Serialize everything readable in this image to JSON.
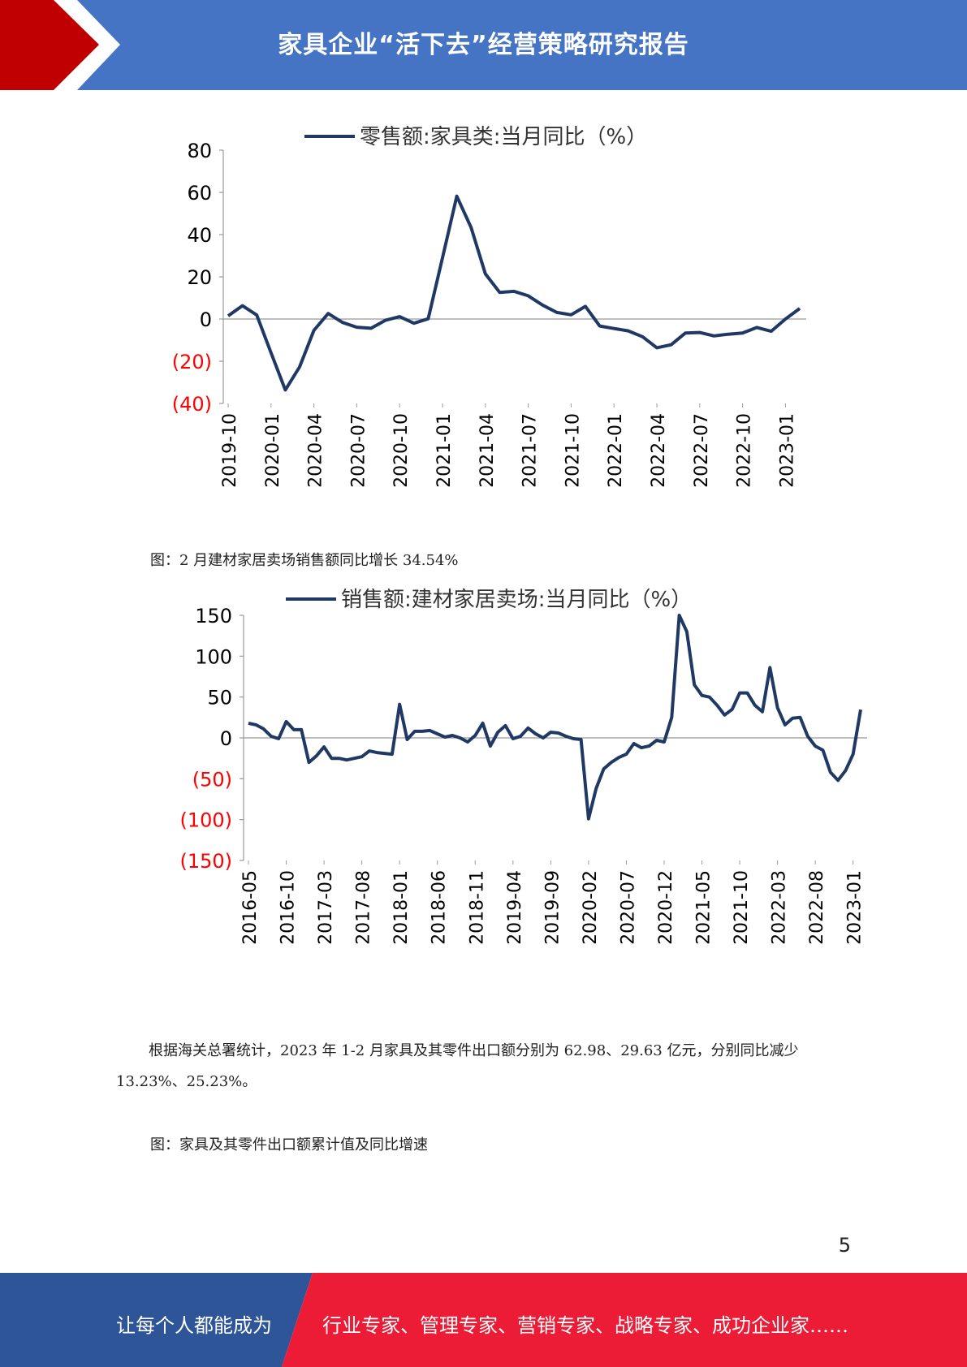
{
  "header": {
    "title": "家具企业“活下去”经营策略研究报告"
  },
  "charts": [
    {
      "legend": "零售额:家具类:当月同比（%）",
      "y_ticks": [
        "80",
        "60",
        "40",
        "20",
        "0",
        "(20)",
        "(40)"
      ],
      "x_ticks": [
        "2019-10",
        "2020-01",
        "2020-04",
        "2020-07",
        "2020-10",
        "2021-01",
        "2021-04",
        "2021-07",
        "2021-10",
        "2022-01",
        "2022-04",
        "2022-07",
        "2022-10",
        "2023-01"
      ]
    },
    {
      "legend": "销售额:建材家居卖场:当月同比（%）",
      "y_ticks": [
        "150",
        "100",
        "50",
        "0",
        "(50)",
        "(100)",
        "(150)"
      ],
      "x_ticks": [
        "2016-05",
        "2016-10",
        "2017-03",
        "2017-08",
        "2018-01",
        "2018-06",
        "2018-11",
        "2019-04",
        "2019-09",
        "2020-02",
        "2020-07",
        "2020-12",
        "2021-05",
        "2021-10",
        "2022-03",
        "2022-08",
        "2023-01"
      ]
    }
  ],
  "chart_data": [
    {
      "type": "line",
      "series_name": "零售额:家具类:当月同比（%）",
      "ylim": [
        -40,
        80
      ],
      "x": [
        "2019-10",
        "2019-11",
        "2019-12",
        "2020-01",
        "2020-02",
        "2020-03",
        "2020-04",
        "2020-05",
        "2020-06",
        "2020-07",
        "2020-08",
        "2020-09",
        "2020-10",
        "2020-11",
        "2020-12",
        "2021-01",
        "2021-02",
        "2021-03",
        "2021-04",
        "2021-05",
        "2021-06",
        "2021-07",
        "2021-08",
        "2021-09",
        "2021-10",
        "2021-11",
        "2021-12",
        "2022-01",
        "2022-02",
        "2022-03",
        "2022-04",
        "2022-05",
        "2022-06",
        "2022-07",
        "2022-08",
        "2022-09",
        "2022-10",
        "2022-11",
        "2022-12",
        "2023-01",
        "2023-02"
      ],
      "values": [
        1.5,
        6.3,
        1.9,
        -16,
        -33.6,
        -22.7,
        -5.4,
        2.6,
        -1.6,
        -3.9,
        -4.4,
        -0.6,
        1.1,
        -2,
        0.1,
        29,
        58.2,
        43.4,
        21.4,
        12.6,
        13.1,
        11,
        6.6,
        3.1,
        2,
        6,
        -3.3,
        -4.5,
        -5.6,
        -8.4,
        -13.6,
        -12.2,
        -6.6,
        -6.4,
        -8,
        -7.2,
        -6.6,
        -4,
        -5.8,
        0,
        5
      ]
    },
    {
      "type": "line",
      "series_name": "销售额:建材家居卖场:当月同比（%）",
      "ylim": [
        -150,
        150
      ],
      "x": [
        "2016-05",
        "2016-06",
        "2016-07",
        "2016-08",
        "2016-09",
        "2016-10",
        "2016-11",
        "2016-12",
        "2017-01",
        "2017-02",
        "2017-03",
        "2017-04",
        "2017-05",
        "2017-06",
        "2017-07",
        "2017-08",
        "2017-09",
        "2017-10",
        "2017-11",
        "2017-12",
        "2018-01",
        "2018-02",
        "2018-03",
        "2018-04",
        "2018-05",
        "2018-06",
        "2018-07",
        "2018-08",
        "2018-09",
        "2018-10",
        "2018-11",
        "2018-12",
        "2019-01",
        "2019-02",
        "2019-03",
        "2019-04",
        "2019-05",
        "2019-06",
        "2019-07",
        "2019-08",
        "2019-09",
        "2019-10",
        "2019-11",
        "2019-12",
        "2020-01",
        "2020-02",
        "2020-03",
        "2020-04",
        "2020-05",
        "2020-06",
        "2020-07",
        "2020-08",
        "2020-09",
        "2020-10",
        "2020-11",
        "2020-12",
        "2021-01",
        "2021-02",
        "2021-03",
        "2021-04",
        "2021-05",
        "2021-06",
        "2021-07",
        "2021-08",
        "2021-09",
        "2021-10",
        "2021-11",
        "2021-12",
        "2022-01",
        "2022-02",
        "2022-03",
        "2022-04",
        "2022-05",
        "2022-06",
        "2022-07",
        "2022-08",
        "2022-09",
        "2022-10",
        "2022-11",
        "2022-12",
        "2023-01",
        "2023-02"
      ],
      "values": [
        18,
        16,
        11,
        2,
        -1,
        20,
        10,
        10,
        -30,
        -22,
        -11,
        -25,
        -25,
        -27,
        -25,
        -23,
        -16,
        -18,
        -19,
        -20,
        41,
        -2,
        8,
        8,
        9,
        5,
        1,
        3,
        0,
        -5,
        3,
        18,
        -10,
        7,
        15,
        -1,
        2,
        12,
        5,
        0,
        7,
        6,
        2,
        -1,
        -2,
        -99,
        -62,
        -38,
        -30,
        -24,
        -20,
        -7,
        -12,
        -10,
        -3,
        -5,
        25,
        150,
        130,
        65,
        52,
        50,
        40,
        28,
        35,
        55,
        55,
        40,
        32,
        86,
        37,
        16,
        24,
        25,
        2,
        -10,
        -15,
        -42,
        -52,
        -40,
        -20,
        34.54
      ]
    }
  ],
  "caption2": "图：2 月建材家居卖场销售额同比增长 34.54%",
  "paragraph": "根据海关总署统计，2023 年 1-2 月家具及其零件出口额分别为 62.98、29.63 亿元，分别同比减少 13.23%、25.23%。",
  "caption3": "图：家具及其零件出口额累计值及同比增速",
  "page_number": "5",
  "footer": {
    "left": "让每个人都能成为",
    "right": "行业专家、管理专家、营销专家、战略专家、成功企业家……"
  },
  "colors": {
    "header_blue": "#4574c4",
    "header_red": "#c00000",
    "line": "#1f3864",
    "negative_tick": "#ff0000",
    "footer_blue": "#2e5597",
    "footer_red": "#ed1c36"
  }
}
